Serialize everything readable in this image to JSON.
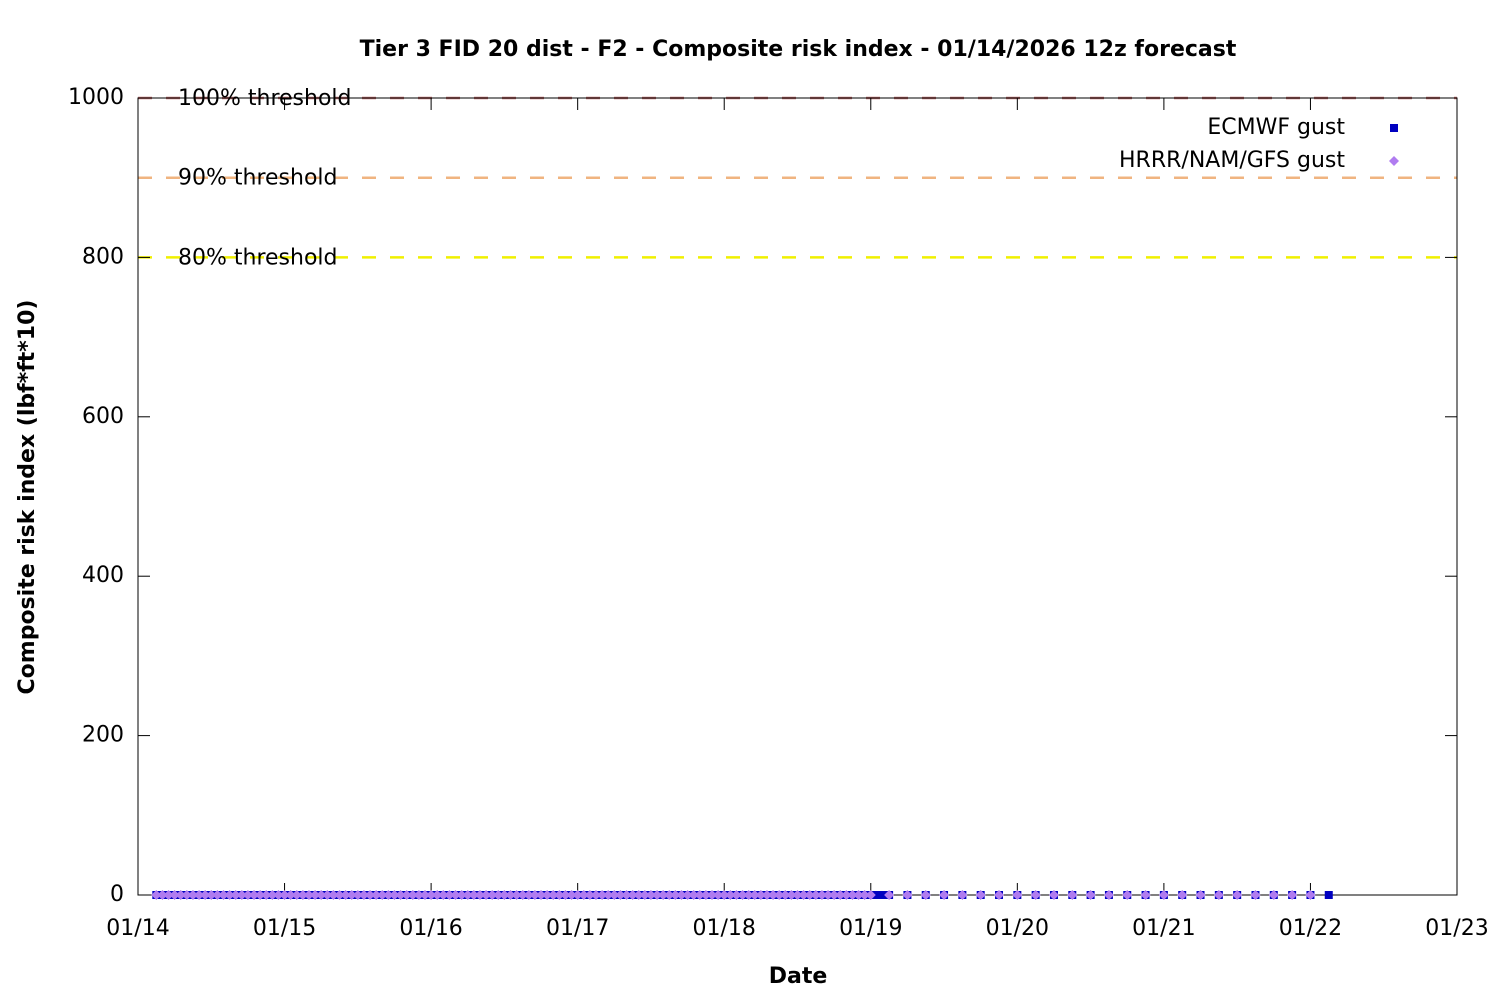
{
  "chart_data": {
    "type": "scatter",
    "title": "Tier 3 FID 20 dist - F2 - Composite risk index - 01/14/2026 12z forecast",
    "x_label": "Date",
    "y_label": "Composite risk index (lbf*ft*10)",
    "xlim": [
      0,
      216
    ],
    "xticks": [
      {
        "value": 0,
        "label": "01/14"
      },
      {
        "value": 24,
        "label": "01/15"
      },
      {
        "value": 48,
        "label": "01/16"
      },
      {
        "value": 72,
        "label": "01/17"
      },
      {
        "value": 96,
        "label": "01/18"
      },
      {
        "value": 120,
        "label": "01/19"
      },
      {
        "value": 144,
        "label": "01/20"
      },
      {
        "value": 168,
        "label": "01/21"
      },
      {
        "value": 192,
        "label": "01/22"
      },
      {
        "value": 216,
        "label": "01/23"
      }
    ],
    "ylim": [
      0,
      1000
    ],
    "yticks": [
      0,
      200,
      400,
      600,
      800,
      1000
    ],
    "legend": "top-right",
    "thresholds": [
      {
        "label": "100% threshold",
        "value": 1000,
        "color": "#c07070"
      },
      {
        "label": "90% threshold",
        "value": 900,
        "color": "#f0b480"
      },
      {
        "label": "80% threshold",
        "value": 800,
        "color": "#f0f000"
      }
    ],
    "series": [
      {
        "name": "ECMWF gust",
        "color": "#0000c0",
        "marker": "square",
        "x": [
          3,
          4,
          5,
          6,
          7,
          8,
          9,
          10,
          11,
          12,
          13,
          14,
          15,
          16,
          17,
          18,
          19,
          20,
          21,
          22,
          23,
          24,
          25,
          26,
          27,
          28,
          29,
          30,
          31,
          32,
          33,
          34,
          35,
          36,
          37,
          38,
          39,
          40,
          41,
          42,
          43,
          44,
          45,
          46,
          47,
          48,
          49,
          50,
          51,
          52,
          53,
          54,
          55,
          56,
          57,
          58,
          59,
          60,
          61,
          62,
          63,
          64,
          65,
          66,
          67,
          68,
          69,
          70,
          71,
          72,
          73,
          74,
          75,
          76,
          77,
          78,
          79,
          80,
          81,
          82,
          83,
          84,
          85,
          86,
          87,
          88,
          89,
          90,
          91,
          92,
          93,
          94,
          95,
          96,
          97,
          98,
          99,
          100,
          101,
          102,
          103,
          104,
          105,
          106,
          107,
          108,
          109,
          110,
          111,
          112,
          113,
          114,
          115,
          116,
          117,
          118,
          119,
          120,
          121,
          122,
          123,
          126,
          129,
          132,
          135,
          138,
          141,
          144,
          147,
          150,
          153,
          156,
          159,
          162,
          165,
          168,
          171,
          174,
          177,
          180,
          183,
          186,
          189,
          192,
          195
        ],
        "values": [
          0,
          0,
          0,
          0,
          0,
          0,
          0,
          0,
          0,
          0,
          0,
          0,
          0,
          0,
          0,
          0,
          0,
          0,
          0,
          0,
          0,
          0,
          0,
          0,
          0,
          0,
          0,
          0,
          0,
          0,
          0,
          0,
          0,
          0,
          0,
          0,
          0,
          0,
          0,
          0,
          0,
          0,
          0,
          0,
          0,
          0,
          0,
          0,
          0,
          0,
          0,
          0,
          0,
          0,
          0,
          0,
          0,
          0,
          0,
          0,
          0,
          0,
          0,
          0,
          0,
          0,
          0,
          0,
          0,
          0,
          0,
          0,
          0,
          0,
          0,
          0,
          0,
          0,
          0,
          0,
          0,
          0,
          0,
          0,
          0,
          0,
          0,
          0,
          0,
          0,
          0,
          0,
          0,
          0,
          0,
          0,
          0,
          0,
          0,
          0,
          0,
          0,
          0,
          0,
          0,
          0,
          0,
          0,
          0,
          0,
          0,
          0,
          0,
          0,
          0,
          0,
          0,
          0,
          0,
          0,
          0,
          0,
          0,
          0,
          0,
          0,
          0,
          0,
          0,
          0,
          0,
          0,
          0,
          0,
          0,
          0,
          0,
          0,
          0,
          0,
          0,
          0,
          0,
          0,
          0
        ]
      },
      {
        "name": "HRRR/NAM/GFS gust",
        "color": "#b07cf0",
        "marker": "diamond",
        "x": [
          3,
          4,
          5,
          6,
          7,
          8,
          9,
          10,
          11,
          12,
          13,
          14,
          15,
          16,
          17,
          18,
          19,
          20,
          21,
          22,
          23,
          24,
          25,
          26,
          27,
          28,
          29,
          30,
          31,
          32,
          33,
          34,
          35,
          36,
          37,
          38,
          39,
          40,
          41,
          42,
          43,
          44,
          45,
          46,
          47,
          48,
          49,
          50,
          51,
          52,
          53,
          54,
          55,
          56,
          57,
          58,
          59,
          60,
          61,
          62,
          63,
          64,
          65,
          66,
          67,
          68,
          69,
          70,
          71,
          72,
          73,
          74,
          75,
          76,
          77,
          78,
          79,
          80,
          81,
          82,
          83,
          84,
          85,
          86,
          87,
          88,
          89,
          90,
          91,
          92,
          93,
          94,
          95,
          96,
          97,
          98,
          99,
          100,
          101,
          102,
          103,
          104,
          105,
          106,
          107,
          108,
          109,
          110,
          111,
          112,
          113,
          114,
          115,
          116,
          117,
          118,
          119,
          120,
          123,
          126,
          129,
          132,
          135,
          138,
          141,
          144,
          147,
          150,
          153,
          156,
          159,
          162,
          165,
          168,
          171,
          174,
          177,
          180,
          183,
          186,
          189,
          192
        ],
        "values": [
          0,
          0,
          0,
          0,
          0,
          0,
          0,
          0,
          0,
          0,
          0,
          0,
          0,
          0,
          0,
          0,
          0,
          0,
          0,
          0,
          0,
          0,
          0,
          0,
          0,
          0,
          0,
          0,
          0,
          0,
          0,
          0,
          0,
          0,
          0,
          0,
          0,
          0,
          0,
          0,
          0,
          0,
          0,
          0,
          0,
          0,
          0,
          0,
          0,
          0,
          0,
          0,
          0,
          0,
          0,
          0,
          0,
          0,
          0,
          0,
          0,
          0,
          0,
          0,
          0,
          0,
          0,
          0,
          0,
          0,
          0,
          0,
          0,
          0,
          0,
          0,
          0,
          0,
          0,
          0,
          0,
          0,
          0,
          0,
          0,
          0,
          0,
          0,
          0,
          0,
          0,
          0,
          0,
          0,
          0,
          0,
          0,
          0,
          0,
          0,
          0,
          0,
          0,
          0,
          0,
          0,
          0,
          0,
          0,
          0,
          0,
          0,
          0,
          0,
          0,
          0,
          0,
          0,
          0,
          0,
          0,
          0,
          0,
          0,
          0,
          0,
          0,
          0,
          0,
          0,
          0,
          0,
          0,
          0,
          0,
          0,
          0,
          0,
          0,
          0,
          0,
          0
        ]
      }
    ]
  }
}
